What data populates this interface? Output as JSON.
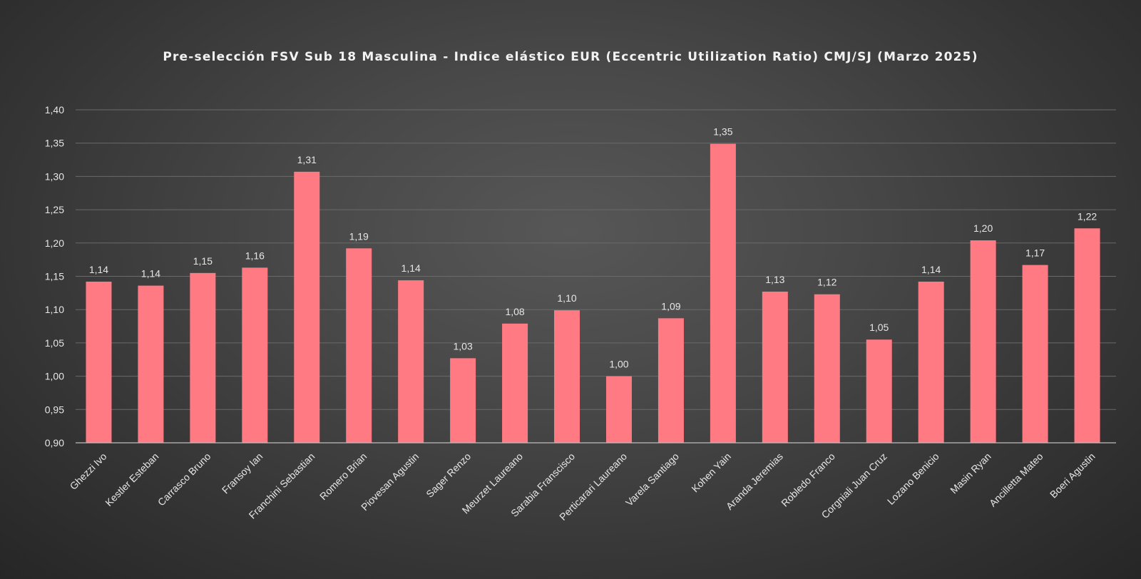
{
  "chart_data": {
    "type": "bar",
    "title": "Pre-selección FSV Sub 18 Masculina - Indice elástico EUR (Eccentric Utilization Ratio) CMJ/SJ (Marzo 2025)",
    "categories": [
      "Ghezzi Ivo",
      "Kestler Esteban",
      "Carrasco Bruno",
      "Fransoy Ian",
      "Franchini Sebastian",
      "Romero Brian",
      "Piovesan Agustin",
      "Sager Renzo",
      "Meurzet Laureano",
      "Sarabia Franscisco",
      "Perticarari Laureano",
      "Varela Santiago",
      "Kohen Yain",
      "Aranda Jeremias",
      "Robledo Franco",
      "Corgniali Juan Cruz",
      "Lozano Benicio",
      "Masin Ryan",
      "Ancilletta Mateo",
      "Boeri Agustin"
    ],
    "values": [
      1.142,
      1.136,
      1.155,
      1.163,
      1.307,
      1.192,
      1.144,
      1.027,
      1.079,
      1.099,
      1.0,
      1.087,
      1.349,
      1.127,
      1.123,
      1.055,
      1.142,
      1.204,
      1.167,
      1.222
    ],
    "data_labels": [
      "1,14",
      "1,14",
      "1,15",
      "1,16",
      "1,31",
      "1,19",
      "1,14",
      "1,03",
      "1,08",
      "1,10",
      "1,00",
      "1,09",
      "1,35",
      "1,13",
      "1,12",
      "1,05",
      "1,14",
      "1,20",
      "1,17",
      "1,22"
    ],
    "y_ticks": [
      {
        "value": 0.9,
        "label": "0,90"
      },
      {
        "value": 0.95,
        "label": "0,95"
      },
      {
        "value": 1.0,
        "label": "1,00"
      },
      {
        "value": 1.05,
        "label": "1,05"
      },
      {
        "value": 1.1,
        "label": "1,10"
      },
      {
        "value": 1.15,
        "label": "1,15"
      },
      {
        "value": 1.2,
        "label": "1,20"
      },
      {
        "value": 1.25,
        "label": "1,25"
      },
      {
        "value": 1.3,
        "label": "1,30"
      },
      {
        "value": 1.35,
        "label": "1,35"
      },
      {
        "value": 1.4,
        "label": "1,40"
      }
    ],
    "ylim": [
      0.9,
      1.4
    ],
    "xlabel": "",
    "ylabel": "",
    "grid": true,
    "legend": "none",
    "colors": {
      "bar": "#ff7a82",
      "text": "#e6e6e6",
      "title": "#f2f2f2",
      "grid": "#6a6a6a",
      "axis": "#bdbdbd"
    }
  }
}
